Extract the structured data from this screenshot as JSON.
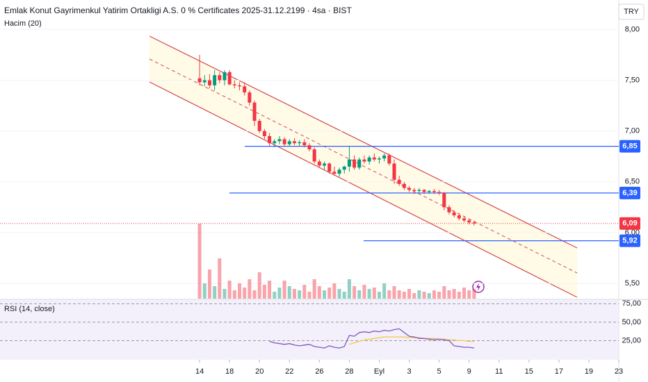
{
  "chart_data": {
    "type": "candlestick",
    "title": "Emlak Konut Gayrimenkul Yatirim Ortakligi A.S. 0 % Certificates 2025-31.12.2199 · 4sa · BIST",
    "volume_label": "Hacim (20)",
    "currency": "TRY",
    "rsi_label": "RSI (14, close)",
    "up_color": "#089981",
    "down_color": "#f23645",
    "xlim": [
      0,
      124
    ],
    "xticks": [
      {
        "value": 40,
        "label": "14"
      },
      {
        "value": 46,
        "label": "18"
      },
      {
        "value": 52,
        "label": "20"
      },
      {
        "value": 58,
        "label": "22"
      },
      {
        "value": 64,
        "label": "26"
      },
      {
        "value": 70,
        "label": "28"
      },
      {
        "value": 76,
        "label": "Eyl"
      },
      {
        "value": 82,
        "label": "3"
      },
      {
        "value": 88,
        "label": "5"
      },
      {
        "value": 94,
        "label": "9"
      },
      {
        "value": 100,
        "label": "11"
      },
      {
        "value": 106,
        "label": "15"
      },
      {
        "value": 112,
        "label": "17"
      },
      {
        "value": 118,
        "label": "19"
      },
      {
        "value": 124,
        "label": "23"
      }
    ],
    "ylim": [
      5.35,
      8.29
    ],
    "yticks": [
      {
        "value": 8,
        "label": "8,00"
      },
      {
        "value": 7.5,
        "label": "7,50"
      },
      {
        "value": 7,
        "label": "7,00"
      },
      {
        "value": 6.5,
        "label": "6,50"
      },
      {
        "value": 6,
        "label": "6,00"
      },
      {
        "value": 5.5,
        "label": "5,50"
      }
    ],
    "x": [
      40,
      41,
      42,
      43,
      44,
      45,
      46,
      47,
      48,
      49,
      50,
      51,
      52,
      53,
      54,
      55,
      56,
      57,
      58,
      59,
      60,
      61,
      62,
      63,
      64,
      65,
      66,
      67,
      68,
      69,
      70,
      71,
      72,
      73,
      74,
      75,
      76,
      77,
      78,
      79,
      80,
      81,
      82,
      83,
      84,
      85,
      86,
      87,
      88,
      89,
      90,
      91,
      92,
      93,
      94,
      95
    ],
    "open": [
      7.52,
      7.48,
      7.5,
      7.45,
      7.55,
      7.5,
      7.58,
      7.46,
      7.45,
      7.44,
      7.38,
      7.28,
      7.1,
      7.0,
      6.95,
      6.88,
      6.9,
      6.92,
      6.87,
      6.9,
      6.88,
      6.89,
      6.86,
      6.82,
      6.7,
      6.66,
      6.68,
      6.6,
      6.58,
      6.62,
      6.65,
      6.72,
      6.64,
      6.72,
      6.7,
      6.74,
      6.72,
      6.73,
      6.76,
      6.68,
      6.52,
      6.48,
      6.44,
      6.42,
      6.41,
      6.42,
      6.4,
      6.41,
      6.4,
      6.39,
      6.25,
      6.2,
      6.17,
      6.14,
      6.12,
      6.1
    ],
    "high": [
      7.75,
      7.55,
      7.56,
      7.6,
      7.58,
      7.6,
      7.6,
      7.5,
      7.48,
      7.48,
      7.4,
      7.3,
      7.12,
      7.02,
      6.98,
      6.92,
      6.95,
      6.94,
      6.92,
      6.93,
      6.91,
      6.92,
      6.88,
      6.84,
      6.72,
      6.7,
      6.69,
      6.65,
      6.64,
      6.66,
      6.85,
      6.76,
      6.74,
      6.76,
      6.76,
      6.78,
      6.75,
      6.78,
      6.78,
      6.72,
      6.56,
      6.5,
      6.46,
      6.44,
      6.44,
      6.43,
      6.42,
      6.43,
      6.42,
      6.4,
      6.27,
      6.22,
      6.19,
      6.16,
      6.14,
      6.12
    ],
    "low": [
      7.45,
      7.44,
      7.42,
      7.4,
      7.47,
      7.45,
      7.45,
      7.42,
      7.4,
      7.35,
      7.25,
      7.05,
      6.98,
      6.92,
      6.85,
      6.84,
      6.87,
      6.85,
      6.85,
      6.86,
      6.85,
      6.84,
      6.8,
      6.68,
      6.64,
      6.62,
      6.58,
      6.56,
      6.55,
      6.58,
      6.6,
      6.62,
      6.62,
      6.68,
      6.67,
      6.7,
      6.68,
      6.7,
      6.66,
      6.48,
      6.46,
      6.42,
      6.4,
      6.38,
      6.39,
      6.38,
      6.38,
      6.38,
      6.37,
      6.22,
      6.18,
      6.15,
      6.12,
      6.1,
      6.08,
      6.07
    ],
    "close": [
      7.48,
      7.5,
      7.45,
      7.55,
      7.5,
      7.58,
      7.46,
      7.45,
      7.44,
      7.38,
      7.28,
      7.1,
      7.0,
      6.95,
      6.88,
      6.9,
      6.92,
      6.87,
      6.9,
      6.88,
      6.89,
      6.86,
      6.82,
      6.7,
      6.66,
      6.68,
      6.6,
      6.58,
      6.62,
      6.65,
      6.72,
      6.64,
      6.72,
      6.7,
      6.74,
      6.72,
      6.73,
      6.76,
      6.68,
      6.52,
      6.48,
      6.44,
      6.42,
      6.41,
      6.42,
      6.4,
      6.41,
      6.4,
      6.39,
      6.25,
      6.2,
      6.17,
      6.14,
      6.12,
      6.1,
      6.09
    ],
    "volume": [
      108,
      22,
      42,
      18,
      58,
      14,
      26,
      12,
      22,
      16,
      28,
      12,
      38,
      20,
      26,
      10,
      16,
      26,
      18,
      14,
      12,
      20,
      10,
      28,
      18,
      12,
      16,
      22,
      14,
      10,
      28,
      18,
      12,
      20,
      14,
      16,
      10,
      22,
      12,
      18,
      12,
      10,
      14,
      8,
      12,
      10,
      8,
      12,
      10,
      18,
      12,
      14,
      10,
      16,
      12,
      14
    ],
    "price_lines": [
      {
        "value": 6.85,
        "label": "6,85",
        "color": "#2962ff"
      },
      {
        "value": 6.39,
        "label": "6,39",
        "color": "#2962ff"
      },
      {
        "value": 5.92,
        "label": "5,92",
        "color": "#2962ff"
      }
    ],
    "last_price": {
      "value": 6.09,
      "label": "6,09",
      "color": "#f23645"
    },
    "rsi_ylim": [
      0,
      80
    ],
    "rsi_ticks": [
      {
        "value": 75,
        "label": "75,00"
      },
      {
        "value": 50,
        "label": "50,00"
      },
      {
        "value": 25,
        "label": "25,00"
      }
    ],
    "rsi": {
      "name": "RSI",
      "color": "#7e57c2",
      "values": [
        null,
        null,
        null,
        null,
        null,
        null,
        null,
        null,
        null,
        null,
        null,
        null,
        null,
        null,
        24,
        22,
        21,
        20,
        21,
        19,
        18,
        19,
        20,
        17,
        16,
        15,
        18,
        16,
        15,
        17,
        32,
        31,
        36,
        37,
        36,
        38,
        37,
        39,
        38,
        40,
        41,
        36,
        31,
        30,
        28,
        28,
        27,
        26,
        27,
        26,
        25,
        18,
        17,
        16,
        16,
        15
      ]
    },
    "rsi_ma": {
      "name": "MA",
      "color": "#f7c548",
      "values": [
        null,
        null,
        null,
        null,
        null,
        null,
        null,
        null,
        null,
        null,
        null,
        null,
        null,
        null,
        null,
        null,
        null,
        null,
        null,
        null,
        null,
        null,
        null,
        null,
        null,
        null,
        null,
        null,
        null,
        null,
        20,
        22,
        24,
        26,
        27,
        28,
        29,
        30,
        30,
        30,
        30,
        30,
        29,
        29,
        29,
        28,
        28,
        28,
        27,
        27,
        26,
        26,
        25,
        25,
        24,
        24
      ]
    }
  }
}
